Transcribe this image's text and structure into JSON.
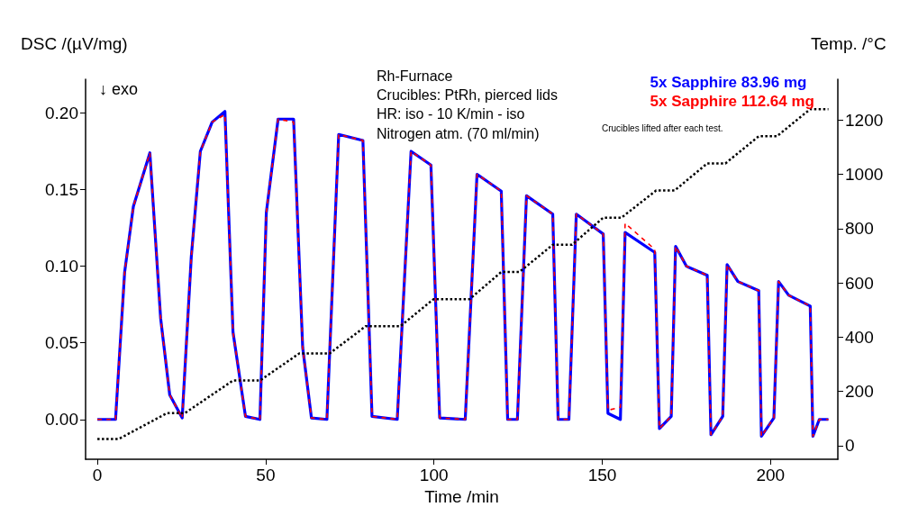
{
  "chart_data": {
    "type": "line",
    "xlabel": "Time /min",
    "ylabel": "DSC /(µV/mg)",
    "y2label": "Temp. /°C",
    "annotations": [
      "↓ exo",
      "Rh-Furnace",
      "Crucibles: PtRh, pierced lids",
      "HR: iso - 10 K/min - iso",
      "Nitrogen atm. (70 ml/min)",
      "Crucibles lifted after each test."
    ],
    "x": [
      0,
      5.4,
      8.1,
      10.7,
      15.6,
      18.8,
      21.5,
      25.2,
      27.9,
      30.6,
      34.1,
      37.9,
      40.3,
      44,
      48.3,
      50.2,
      53.7,
      58.3,
      61,
      63.6,
      68.2,
      71.7,
      78.9,
      81.6,
      89.1,
      93.2,
      99.1,
      101.7,
      109.3,
      112.8,
      120,
      121.9,
      124.8,
      127.5,
      135.3,
      136.9,
      140.1,
      142.3,
      150.3,
      151.7,
      155.4,
      156.8,
      165.6,
      167,
      170.5,
      171.8,
      175,
      181.2,
      182.3,
      185.8,
      187.1,
      190.3,
      196.5,
      197.3,
      201,
      202.4,
      205.4,
      211.8,
      212.6,
      214.5,
      217.2
    ],
    "series": [
      {
        "name": "5x Sapphire 83.96 mg",
        "color": "#0000ff",
        "values": [
          0,
          0,
          0.096,
          0.139,
          0.174,
          0.066,
          0.016,
          0.001,
          0.106,
          0.175,
          0.194,
          0.201,
          0.057,
          0.002,
          0,
          0.135,
          0.196,
          0.196,
          0.047,
          0.001,
          0,
          0.186,
          0.182,
          0.002,
          0,
          0.175,
          0.166,
          0.001,
          0,
          0.16,
          0.149,
          0,
          0,
          0.146,
          0.134,
          0,
          0,
          0.134,
          0.121,
          0.004,
          0,
          0.122,
          0.109,
          -0.006,
          0.002,
          0.113,
          0.1,
          0.094,
          -0.01,
          0.002,
          0.101,
          0.09,
          0.084,
          -0.011,
          0.001,
          0.09,
          0.081,
          0.074,
          -0.011,
          0,
          0
        ]
      },
      {
        "name": "5x Sapphire 112.64 mg",
        "color": "#ff0000",
        "line_style": "dashed",
        "values": [
          0,
          0,
          0.096,
          0.139,
          0.174,
          0.066,
          0.016,
          0.001,
          0.106,
          0.175,
          0.194,
          0.199,
          0.057,
          0.002,
          0,
          0.135,
          0.196,
          0.194,
          0.047,
          0.001,
          0,
          0.186,
          0.182,
          0.002,
          0,
          0.175,
          0.166,
          0.001,
          0,
          0.16,
          0.149,
          0,
          0,
          0.146,
          0.134,
          0,
          0,
          0.134,
          0.121,
          0.006,
          0.008,
          0.128,
          0.111,
          -0.006,
          0.002,
          0.113,
          0.1,
          0.094,
          -0.01,
          0.002,
          0.101,
          0.09,
          0.084,
          -0.011,
          0.001,
          0.09,
          0.081,
          0.074,
          -0.011,
          0,
          0
        ]
      },
      {
        "color": "#000000",
        "axis": "y2",
        "line_style": "dotted",
        "x": [
          0,
          6.4,
          20.7,
          26,
          40.3,
          48.3,
          60,
          69,
          79.7,
          90,
          99.9,
          110.6,
          120,
          125.4,
          135.3,
          141,
          150.3,
          155.7,
          166,
          171.5,
          181.2,
          186.6,
          196.5,
          201.9,
          211.8,
          217.2
        ],
        "values": [
          25,
          25,
          120,
          120,
          240,
          240,
          340,
          340,
          440,
          440,
          540,
          540,
          640,
          640,
          740,
          740,
          840,
          840,
          940,
          940,
          1040,
          1040,
          1140,
          1140,
          1240,
          1240
        ]
      }
    ],
    "xlim": [
      -3.5,
      220
    ],
    "xticks": [
      0,
      50,
      100,
      150,
      200
    ],
    "ylim": [
      -0.026,
      0.222
    ],
    "yticks": [
      {
        "value": 0,
        "label": "0.00"
      },
      {
        "value": 0.05,
        "label": "0.05"
      },
      {
        "value": 0.1,
        "label": "0.10"
      },
      {
        "value": 0.15,
        "label": "0.15"
      },
      {
        "value": 0.2,
        "label": "0.20"
      }
    ],
    "y2lim": [
      -50,
      1350
    ],
    "y2ticks": [
      0,
      200,
      400,
      600,
      800,
      1000,
      1200
    ],
    "grid": false,
    "legend": "top right",
    "marker": "none",
    "line_style": "solid"
  }
}
